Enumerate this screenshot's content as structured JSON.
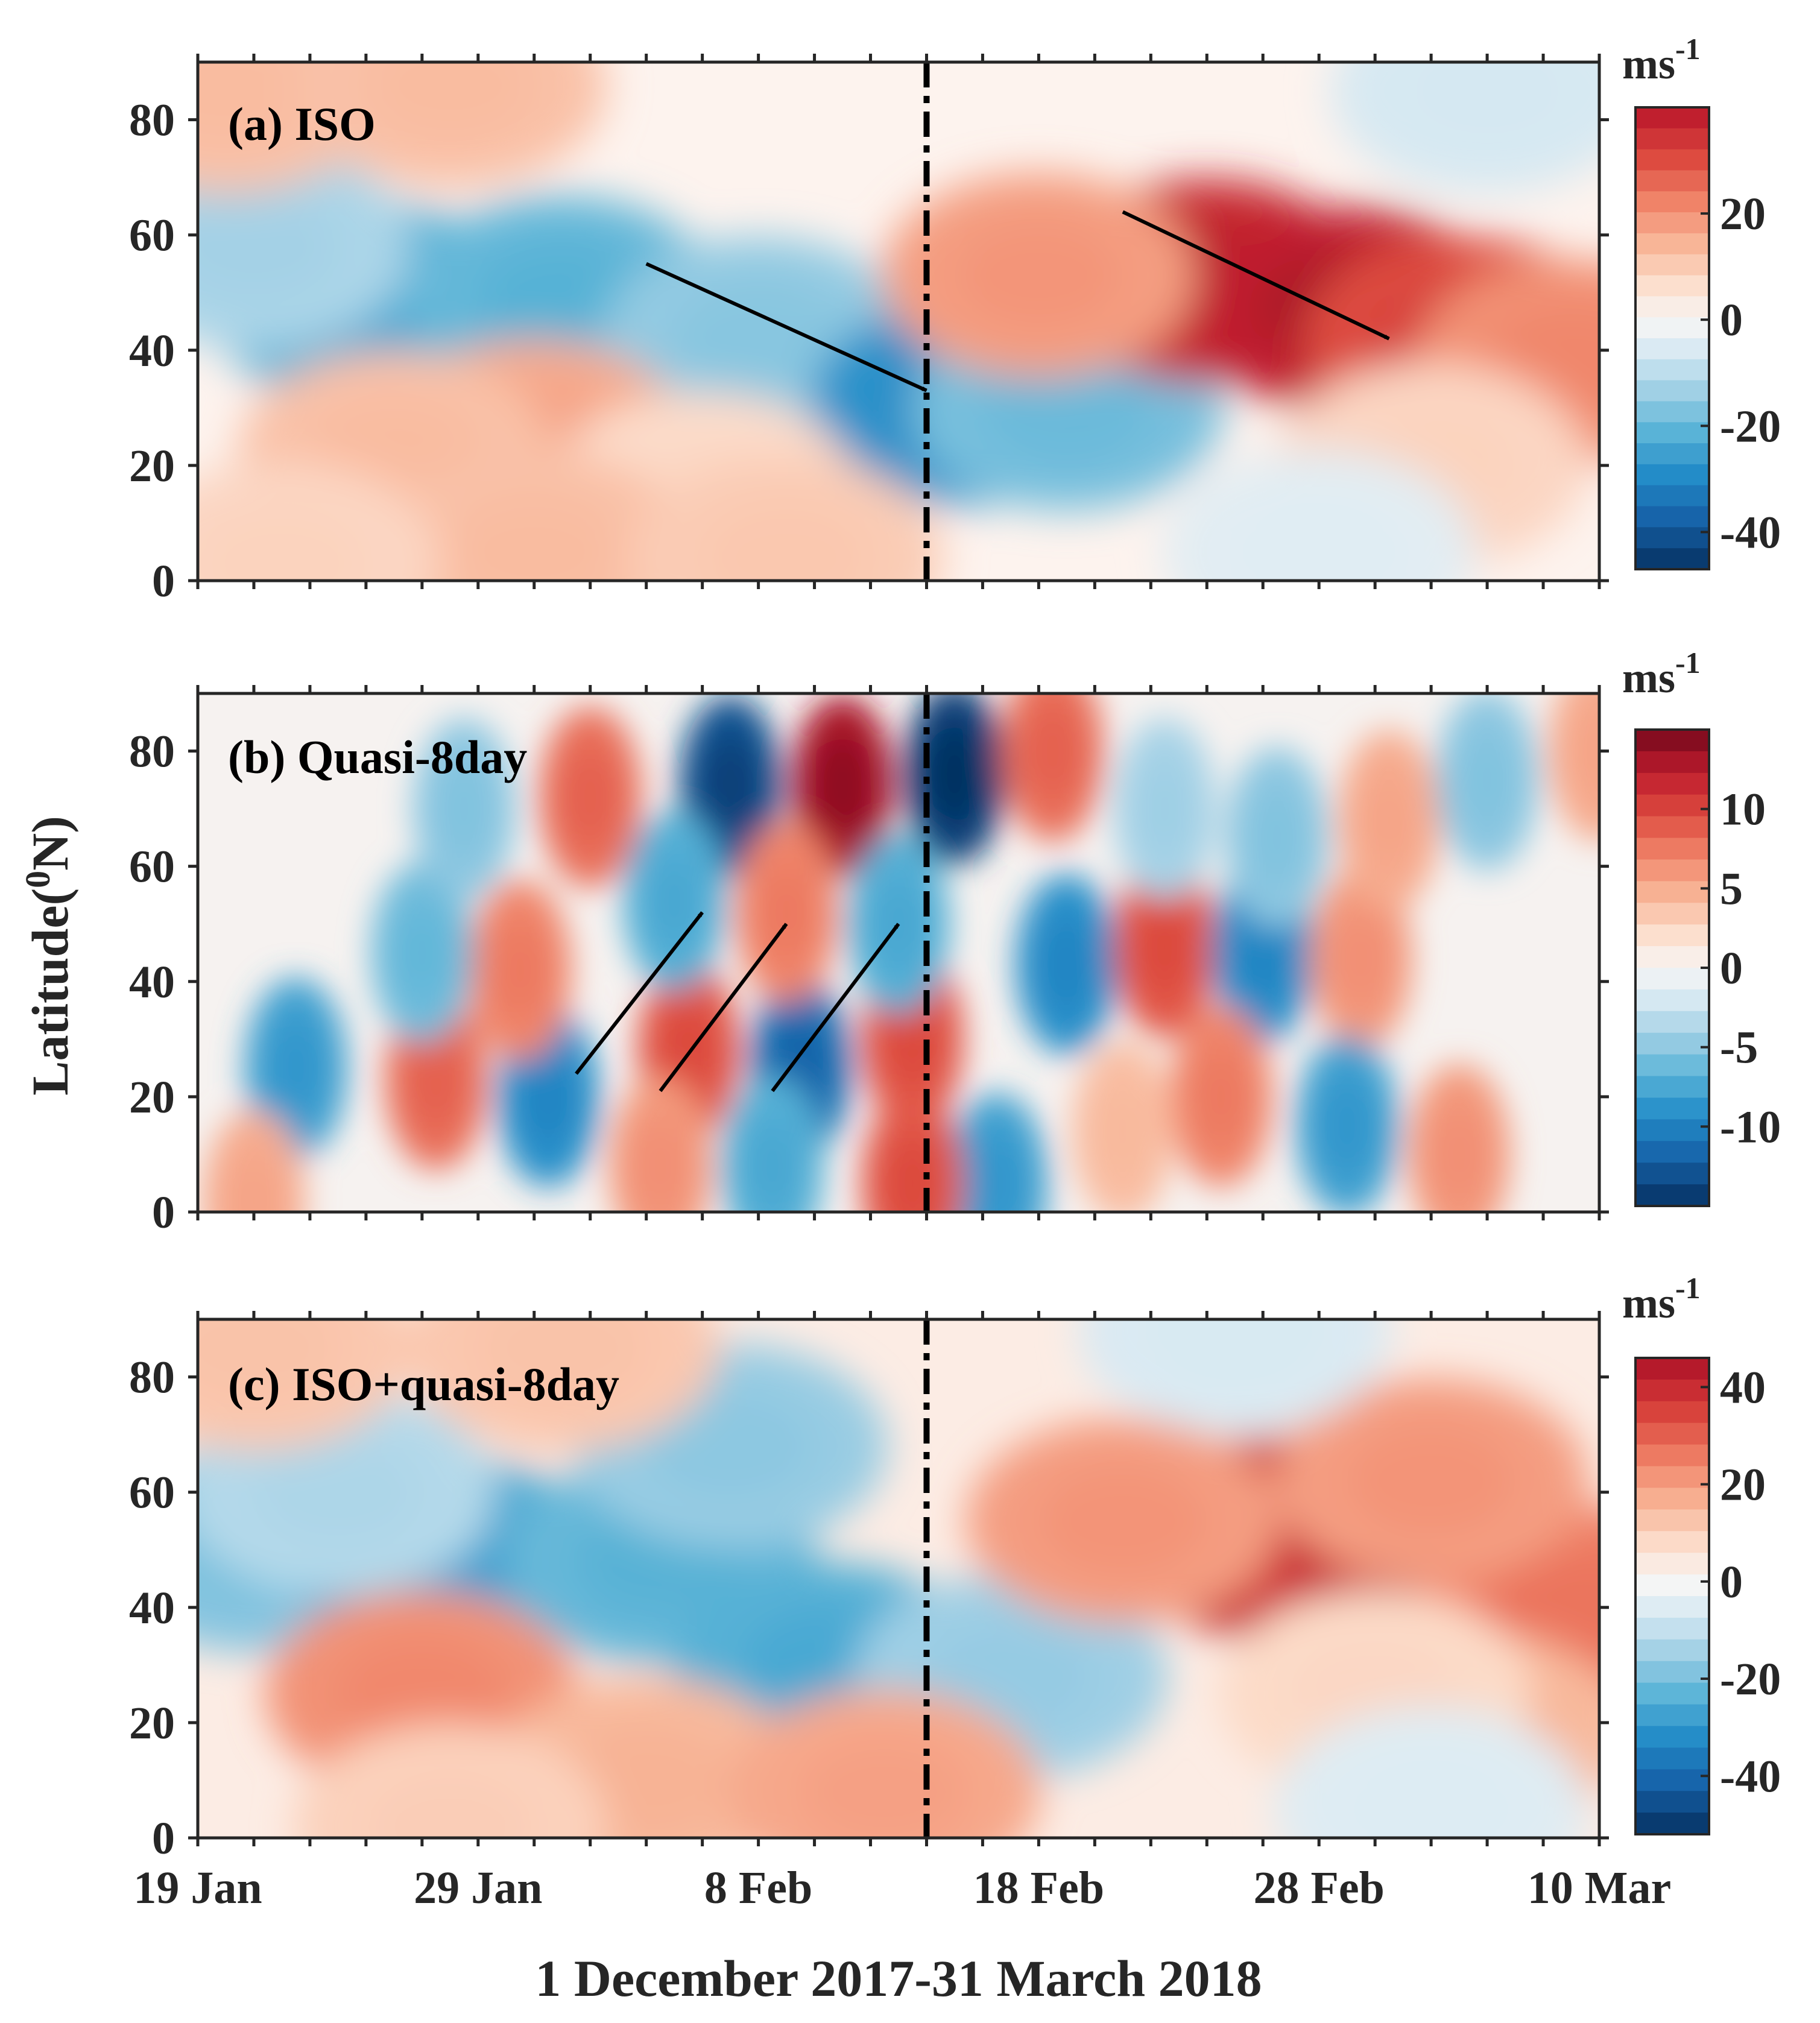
{
  "figure": {
    "xlabel": "1 December 2017-31 March 2018",
    "ylabel_main": "Latitude(",
    "ylabel_sup": "0",
    "ylabel_end": "N)"
  },
  "chart_data": [
    {
      "type": "heatmap",
      "panel_label": "(a) ISO",
      "unit": "ms",
      "unit_exp": "-1",
      "x_dates": [
        "19 Jan",
        "29 Jan",
        "8 Feb",
        "18 Feb",
        "28 Feb",
        "10 Mar"
      ],
      "xlim_days": [
        0,
        50
      ],
      "ylim": [
        0,
        90
      ],
      "yticks": [
        "80",
        "60",
        "40",
        "20",
        "0"
      ],
      "colorbar_range": [
        -47,
        40
      ],
      "colorbar_ticks": [
        "20",
        "0",
        "-20",
        "-40"
      ],
      "vertical_line_day": 26,
      "arrows": [
        {
          "from": [
            16,
            55
          ],
          "to": [
            26,
            33
          ]
        },
        {
          "from": [
            33,
            64
          ],
          "to": [
            42.5,
            42
          ]
        }
      ],
      "blobs": [
        {
          "day": 6,
          "lat": 48,
          "value": -22
        },
        {
          "day": 13,
          "lat": 49,
          "value": -20
        },
        {
          "day": 2,
          "lat": 58,
          "value": -12
        },
        {
          "day": 20,
          "lat": 42,
          "value": -15
        },
        {
          "day": 27.5,
          "lat": 31,
          "value": -28
        },
        {
          "day": 31,
          "lat": 30,
          "value": -18
        },
        {
          "day": 1,
          "lat": 85,
          "value": 12
        },
        {
          "day": 9,
          "lat": 86,
          "value": 12
        },
        {
          "day": 12,
          "lat": 24,
          "value": 16
        },
        {
          "day": 7,
          "lat": 22,
          "value": 12
        },
        {
          "day": 18,
          "lat": 15,
          "value": 7
        },
        {
          "day": 12,
          "lat": 5,
          "value": 12
        },
        {
          "day": 21,
          "lat": 4,
          "value": 10
        },
        {
          "day": 3,
          "lat": 3,
          "value": 8
        },
        {
          "day": 36,
          "lat": 52,
          "value": 36
        },
        {
          "day": 41,
          "lat": 47,
          "value": 38
        },
        {
          "day": 45,
          "lat": 42,
          "value": 30
        },
        {
          "day": 30,
          "lat": 53,
          "value": 18
        },
        {
          "day": 49,
          "lat": 38,
          "value": 20
        },
        {
          "day": 44,
          "lat": 20,
          "value": 8
        },
        {
          "day": 46,
          "lat": 85,
          "value": -6
        },
        {
          "day": 40,
          "lat": 5,
          "value": -4
        }
      ]
    },
    {
      "type": "heatmap",
      "panel_label": "(b) Quasi-8day",
      "unit": "ms",
      "unit_exp": "-1",
      "x_dates": [
        "19 Jan",
        "29 Jan",
        "8 Feb",
        "18 Feb",
        "28 Feb",
        "10 Mar"
      ],
      "xlim_days": [
        0,
        50
      ],
      "ylim": [
        0,
        90
      ],
      "yticks": [
        "80",
        "60",
        "40",
        "20",
        "0"
      ],
      "colorbar_range": [
        -15,
        15
      ],
      "colorbar_ticks": [
        "10",
        "5",
        "0",
        "-5",
        "-10"
      ],
      "vertical_line_day": 26,
      "arrows": [
        {
          "from": [
            13.5,
            24
          ],
          "to": [
            18,
            52
          ]
        },
        {
          "from": [
            16.5,
            21
          ],
          "to": [
            21,
            50
          ]
        },
        {
          "from": [
            20.5,
            21
          ],
          "to": [
            25,
            50
          ]
        }
      ],
      "blobs": [
        {
          "day": 3.5,
          "lat": 25,
          "value": -8
        },
        {
          "day": 8.5,
          "lat": 23,
          "value": 8
        },
        {
          "day": 12.5,
          "lat": 20,
          "value": -9
        },
        {
          "day": 17.5,
          "lat": 28,
          "value": 9
        },
        {
          "day": 21.5,
          "lat": 25,
          "value": -11
        },
        {
          "day": 25.5,
          "lat": 30,
          "value": 9
        },
        {
          "day": 28.5,
          "lat": 5,
          "value": -8
        },
        {
          "day": 20.5,
          "lat": 8,
          "value": -7
        },
        {
          "day": 16.5,
          "lat": 8,
          "value": 6
        },
        {
          "day": 25.5,
          "lat": 5,
          "value": 9
        },
        {
          "day": 11.5,
          "lat": 42,
          "value": 7
        },
        {
          "day": 8,
          "lat": 45,
          "value": -6
        },
        {
          "day": 9.5,
          "lat": 70,
          "value": -5
        },
        {
          "day": 14,
          "lat": 72,
          "value": 8
        },
        {
          "day": 19,
          "lat": 74,
          "value": -13
        },
        {
          "day": 23,
          "lat": 74,
          "value": 13
        },
        {
          "day": 27,
          "lat": 76,
          "value": -14
        },
        {
          "day": 30.5,
          "lat": 80,
          "value": 8
        },
        {
          "day": 17,
          "lat": 54,
          "value": -7
        },
        {
          "day": 21,
          "lat": 52,
          "value": 7
        },
        {
          "day": 25,
          "lat": 50,
          "value": -7
        },
        {
          "day": 31,
          "lat": 43,
          "value": -9
        },
        {
          "day": 34.5,
          "lat": 46,
          "value": 9
        },
        {
          "day": 38,
          "lat": 45,
          "value": -9
        },
        {
          "day": 41.5,
          "lat": 44,
          "value": 6
        },
        {
          "day": 38.5,
          "lat": 65,
          "value": -5
        },
        {
          "day": 42.5,
          "lat": 68,
          "value": 5
        },
        {
          "day": 36.5,
          "lat": 20,
          "value": 7
        },
        {
          "day": 41,
          "lat": 15,
          "value": -8
        },
        {
          "day": 45,
          "lat": 10,
          "value": 6
        },
        {
          "day": 33,
          "lat": 14,
          "value": 4
        },
        {
          "day": 46,
          "lat": 75,
          "value": -5
        },
        {
          "day": 50,
          "lat": 80,
          "value": 5
        },
        {
          "day": 2,
          "lat": 2,
          "value": 5
        },
        {
          "day": 34.5,
          "lat": 70,
          "value": -4
        }
      ]
    },
    {
      "type": "heatmap",
      "panel_label": "(c) ISO+quasi-8day",
      "unit": "ms",
      "unit_exp": "-1",
      "x_dates": [
        "19 Jan",
        "29 Jan",
        "8 Feb",
        "18 Feb",
        "28 Feb",
        "10 Mar"
      ],
      "xlim_days": [
        0,
        50
      ],
      "ylim": [
        0,
        90
      ],
      "yticks": [
        "80",
        "60",
        "40",
        "20",
        "0"
      ],
      "colorbar_range": [
        -52,
        46
      ],
      "colorbar_ticks": [
        "40",
        "20",
        "0",
        "-20",
        "-40"
      ],
      "vertical_line_day": 26,
      "arrows": [],
      "blobs": [
        {
          "day": 2,
          "lat": 50,
          "value": -18
        },
        {
          "day": 9,
          "lat": 48,
          "value": -26
        },
        {
          "day": 16.5,
          "lat": 48,
          "value": -22
        },
        {
          "day": 5,
          "lat": 60,
          "value": -12
        },
        {
          "day": 19,
          "lat": 68,
          "value": -16
        },
        {
          "day": 22.5,
          "lat": 30,
          "value": -24
        },
        {
          "day": 29,
          "lat": 28,
          "value": -15
        },
        {
          "day": 8,
          "lat": 25,
          "value": 22
        },
        {
          "day": 16,
          "lat": 10,
          "value": 15
        },
        {
          "day": 24.5,
          "lat": 8,
          "value": 18
        },
        {
          "day": 2,
          "lat": 85,
          "value": 12
        },
        {
          "day": 13,
          "lat": 85,
          "value": 12
        },
        {
          "day": 9,
          "lat": 2,
          "value": 10
        },
        {
          "day": 38.5,
          "lat": 52,
          "value": 40
        },
        {
          "day": 42,
          "lat": 50,
          "value": 38
        },
        {
          "day": 45,
          "lat": 45,
          "value": 40
        },
        {
          "day": 33,
          "lat": 55,
          "value": 20
        },
        {
          "day": 49,
          "lat": 40,
          "value": 25
        },
        {
          "day": 44,
          "lat": 62,
          "value": 20
        },
        {
          "day": 45.5,
          "lat": 18,
          "value": 15
        },
        {
          "day": 42,
          "lat": 25,
          "value": 8
        },
        {
          "day": 44,
          "lat": 5,
          "value": -5
        },
        {
          "day": 37,
          "lat": 88,
          "value": -6
        }
      ]
    }
  ]
}
